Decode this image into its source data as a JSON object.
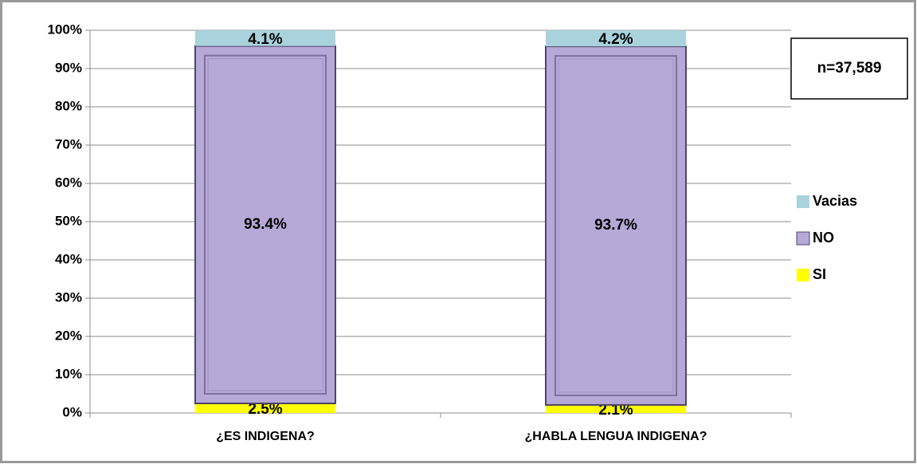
{
  "chart_data": {
    "type": "stacked_bar",
    "categories": [
      "¿ES  INDIGENA?",
      "¿HABLA LENGUA INDIGENA?"
    ],
    "series": [
      {
        "name": "SI",
        "color": "#ffff00",
        "values": [
          2.5,
          2.1
        ],
        "value_labels": [
          "2.5%",
          "2.1%"
        ]
      },
      {
        "name": "NO",
        "color": "#b6a8d7",
        "values": [
          93.4,
          93.7
        ],
        "value_labels": [
          "93.4%",
          "93.7%"
        ]
      },
      {
        "name": "Vacias",
        "color": "#a9d2dd",
        "values": [
          4.1,
          4.2
        ],
        "value_labels": [
          "4.1%",
          "4.2%"
        ]
      }
    ],
    "ylim": [
      0,
      100
    ],
    "yticks": [
      {
        "value": 0,
        "label": "0%"
      },
      {
        "value": 10,
        "label": "10%"
      },
      {
        "value": 20,
        "label": "20%"
      },
      {
        "value": 30,
        "label": "30%"
      },
      {
        "value": 40,
        "label": "40%"
      },
      {
        "value": 50,
        "label": "50%"
      },
      {
        "value": 60,
        "label": "60%"
      },
      {
        "value": 70,
        "label": "70%"
      },
      {
        "value": 80,
        "label": "80%"
      },
      {
        "value": 90,
        "label": "90%"
      },
      {
        "value": 100,
        "label": "100%"
      }
    ],
    "grid": true,
    "legend": "right",
    "annotation": "n=37,589"
  }
}
